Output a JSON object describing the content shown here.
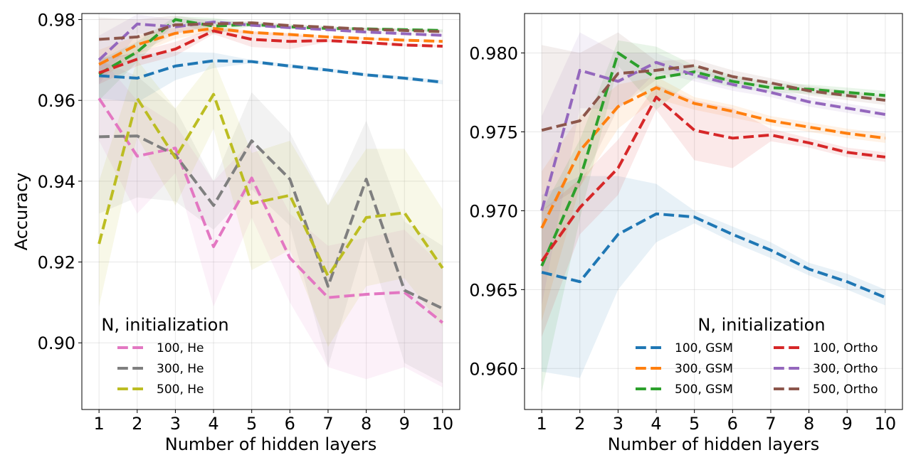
{
  "chart_data": [
    {
      "type": "line",
      "title": "",
      "xlabel": "Number of hidden layers",
      "ylabel": "Accuracy",
      "x": [
        1,
        2,
        3,
        4,
        5,
        6,
        7,
        8,
        9,
        10
      ],
      "xticks": [
        "1",
        "2",
        "3",
        "4",
        "5",
        "6",
        "7",
        "8",
        "9",
        "10"
      ],
      "xlim": [
        0.55,
        10.45
      ],
      "ylim": [
        0.8835,
        0.9815
      ],
      "yticks": [
        "0.90",
        "0.92",
        "0.94",
        "0.96",
        "0.98"
      ],
      "ytick_values": [
        0.9,
        0.92,
        0.94,
        0.96,
        0.98
      ],
      "grid": true,
      "legend": {
        "title": "N, initialization",
        "placement": "lower-left",
        "columns": 1,
        "entries": [
          "100, He",
          "300, He",
          "500, He"
        ]
      },
      "series": [
        {
          "name": "100, GSM",
          "color": "#1f77b4",
          "in_legend": false,
          "values": [
            0.9661,
            0.9655,
            0.9685,
            0.9698,
            0.9696,
            0.9685,
            0.9675,
            0.9663,
            0.9655,
            0.9645
          ],
          "upper": [
            0.9705,
            0.9715,
            0.972,
            0.9718,
            0.97,
            0.969,
            0.968,
            0.9667,
            0.966,
            0.965
          ],
          "lower": [
            0.9605,
            0.9595,
            0.965,
            0.968,
            0.9692,
            0.968,
            0.967,
            0.9659,
            0.965,
            0.964
          ]
        },
        {
          "name": "300, GSM",
          "color": "#ff7f0e",
          "in_legend": false,
          "values": [
            0.9689,
            0.9738,
            0.9766,
            0.9778,
            0.9768,
            0.9763,
            0.9757,
            0.9753,
            0.9749,
            0.9746
          ],
          "upper": [
            0.9725,
            0.976,
            0.978,
            0.9785,
            0.9772,
            0.9767,
            0.976,
            0.9756,
            0.9752,
            0.9749
          ],
          "lower": [
            0.965,
            0.9715,
            0.9752,
            0.9771,
            0.9764,
            0.9759,
            0.9754,
            0.975,
            0.9746,
            0.9743
          ]
        },
        {
          "name": "500, GSM",
          "color": "#2ca02c",
          "in_legend": false,
          "values": [
            0.9665,
            0.972,
            0.98,
            0.9784,
            0.9788,
            0.9782,
            0.9778,
            0.9777,
            0.9775,
            0.9773
          ],
          "upper": [
            0.97,
            0.9745,
            0.9808,
            0.9804,
            0.9792,
            0.9786,
            0.9781,
            0.978,
            0.9778,
            0.9776
          ],
          "lower": [
            0.96,
            0.9695,
            0.9792,
            0.9764,
            0.9784,
            0.9778,
            0.9775,
            0.9774,
            0.9772,
            0.977
          ]
        },
        {
          "name": "100, Ortho",
          "color": "#d62728",
          "in_legend": false,
          "values": [
            0.9668,
            0.9702,
            0.9727,
            0.9772,
            0.9751,
            0.9746,
            0.9748,
            0.9743,
            0.9737,
            0.9734
          ],
          "upper": [
            0.97,
            0.972,
            0.9745,
            0.978,
            0.977,
            0.9765,
            0.9752,
            0.9746,
            0.974,
            0.9737
          ],
          "lower": [
            0.964,
            0.9685,
            0.971,
            0.9764,
            0.9732,
            0.9727,
            0.9744,
            0.974,
            0.9734,
            0.9731
          ]
        },
        {
          "name": "300, Ortho",
          "color": "#9467bd",
          "in_legend": false,
          "values": [
            0.97,
            0.9789,
            0.9782,
            0.9794,
            0.9786,
            0.978,
            0.9775,
            0.9769,
            0.9765,
            0.9761
          ],
          "upper": [
            0.976,
            0.9813,
            0.98,
            0.98,
            0.979,
            0.9784,
            0.9778,
            0.9772,
            0.9768,
            0.9764
          ],
          "lower": [
            0.964,
            0.9765,
            0.9764,
            0.9788,
            0.9782,
            0.9776,
            0.9772,
            0.9766,
            0.9762,
            0.9758
          ]
        },
        {
          "name": "500, Ortho",
          "color": "#8c564b",
          "in_legend": false,
          "values": [
            0.9751,
            0.9757,
            0.9787,
            0.9789,
            0.9792,
            0.9785,
            0.9781,
            0.9776,
            0.9773,
            0.977
          ],
          "upper": [
            0.9805,
            0.98,
            0.981,
            0.9795,
            0.9796,
            0.9789,
            0.9784,
            0.9779,
            0.9776,
            0.9773
          ],
          "lower": [
            0.97,
            0.9715,
            0.9765,
            0.9783,
            0.9788,
            0.9781,
            0.9778,
            0.9773,
            0.977,
            0.9767
          ]
        },
        {
          "name": "100, He",
          "color": "#e377c2",
          "in_legend": true,
          "values": [
            0.9605,
            0.9462,
            0.9482,
            0.9238,
            0.9408,
            0.921,
            0.9112,
            0.912,
            0.9125,
            0.905
          ],
          "upper": [
            0.971,
            0.96,
            0.954,
            0.94,
            0.95,
            0.932,
            0.924,
            0.926,
            0.928,
            0.919
          ],
          "lower": [
            0.95,
            0.932,
            0.942,
            0.909,
            0.931,
            0.91,
            0.894,
            0.891,
            0.894,
            0.889
          ]
        },
        {
          "name": "300, He",
          "color": "#7f7f7f",
          "in_legend": true,
          "values": [
            0.951,
            0.9512,
            0.9465,
            0.934,
            0.95,
            0.9405,
            0.914,
            0.9405,
            0.913,
            0.9085
          ],
          "upper": [
            0.97,
            0.966,
            0.958,
            0.94,
            0.962,
            0.952,
            0.934,
            0.955,
            0.93,
            0.924
          ],
          "lower": [
            0.932,
            0.936,
            0.935,
            0.928,
            0.938,
            0.929,
            0.894,
            0.926,
            0.895,
            0.89
          ]
        },
        {
          "name": "500, He",
          "color": "#bcbd22",
          "in_legend": true,
          "values": [
            0.9245,
            0.9605,
            0.9458,
            0.9615,
            0.9345,
            0.9365,
            0.9165,
            0.931,
            0.9322,
            0.9185
          ],
          "upper": [
            0.94,
            0.97,
            0.958,
            0.97,
            0.947,
            0.95,
            0.934,
            0.948,
            0.948,
            0.933
          ],
          "lower": [
            0.909,
            0.951,
            0.934,
            0.953,
            0.918,
            0.923,
            0.899,
            0.914,
            0.916,
            0.904
          ]
        }
      ]
    },
    {
      "type": "line",
      "title": "",
      "xlabel": "Number of hidden layers",
      "ylabel": "",
      "x": [
        1,
        2,
        3,
        4,
        5,
        6,
        7,
        8,
        9,
        10
      ],
      "xticks": [
        "1",
        "2",
        "3",
        "4",
        "5",
        "6",
        "7",
        "8",
        "9",
        "10"
      ],
      "xlim": [
        0.55,
        10.45
      ],
      "ylim": [
        0.9574,
        0.9825
      ],
      "yticks": [
        "0.960",
        "0.965",
        "0.970",
        "0.975",
        "0.980"
      ],
      "ytick_values": [
        0.96,
        0.965,
        0.97,
        0.975,
        0.98
      ],
      "grid": true,
      "legend": {
        "title": "N, initialization",
        "placement": "lower-right",
        "columns": 2,
        "entries": [
          "100, GSM",
          "300, GSM",
          "500, GSM",
          "100, Ortho",
          "300, Ortho",
          "500, Ortho"
        ]
      },
      "series": [
        {
          "name": "100, GSM",
          "color": "#1f77b4",
          "in_legend": true,
          "values": [
            0.9661,
            0.9655,
            0.9685,
            0.9698,
            0.9696,
            0.9685,
            0.9675,
            0.9663,
            0.9655,
            0.9645
          ],
          "upper": [
            0.971,
            0.9722,
            0.9722,
            0.9717,
            0.97,
            0.969,
            0.968,
            0.9667,
            0.966,
            0.965
          ],
          "lower": [
            0.9598,
            0.9594,
            0.965,
            0.968,
            0.9692,
            0.968,
            0.967,
            0.9659,
            0.965,
            0.964
          ]
        },
        {
          "name": "300, GSM",
          "color": "#ff7f0e",
          "in_legend": true,
          "values": [
            0.9689,
            0.9738,
            0.9766,
            0.9778,
            0.9768,
            0.9763,
            0.9757,
            0.9753,
            0.9749,
            0.9746
          ],
          "upper": [
            0.9725,
            0.976,
            0.978,
            0.9785,
            0.9772,
            0.9767,
            0.976,
            0.9756,
            0.9752,
            0.9749
          ],
          "lower": [
            0.963,
            0.9715,
            0.9752,
            0.9771,
            0.9764,
            0.9759,
            0.9754,
            0.975,
            0.9746,
            0.9743
          ]
        },
        {
          "name": "500, GSM",
          "color": "#2ca02c",
          "in_legend": true,
          "values": [
            0.9665,
            0.972,
            0.98,
            0.9784,
            0.9788,
            0.9782,
            0.9778,
            0.9777,
            0.9775,
            0.9773
          ],
          "upper": [
            0.97,
            0.9745,
            0.9808,
            0.9804,
            0.9792,
            0.9786,
            0.9781,
            0.978,
            0.9778,
            0.9776
          ],
          "lower": [
            0.9585,
            0.9695,
            0.9792,
            0.9764,
            0.9784,
            0.9778,
            0.9775,
            0.9774,
            0.9772,
            0.977
          ]
        },
        {
          "name": "100, Ortho",
          "color": "#d62728",
          "in_legend": true,
          "values": [
            0.9668,
            0.9702,
            0.9727,
            0.9772,
            0.9751,
            0.9746,
            0.9748,
            0.9743,
            0.9737,
            0.9734
          ],
          "upper": [
            0.97,
            0.972,
            0.9745,
            0.978,
            0.977,
            0.9765,
            0.9752,
            0.9746,
            0.974,
            0.9737
          ],
          "lower": [
            0.962,
            0.9685,
            0.971,
            0.9764,
            0.9732,
            0.9727,
            0.9744,
            0.974,
            0.9734,
            0.9731
          ]
        },
        {
          "name": "300, Ortho",
          "color": "#9467bd",
          "in_legend": true,
          "values": [
            0.97,
            0.9789,
            0.9782,
            0.9794,
            0.9786,
            0.978,
            0.9775,
            0.9769,
            0.9765,
            0.9761
          ],
          "upper": [
            0.976,
            0.9813,
            0.98,
            0.98,
            0.979,
            0.9784,
            0.9778,
            0.9772,
            0.9768,
            0.9764
          ],
          "lower": [
            0.964,
            0.9765,
            0.9764,
            0.9788,
            0.9782,
            0.9776,
            0.9772,
            0.9766,
            0.9762,
            0.9758
          ]
        },
        {
          "name": "500, Ortho",
          "color": "#8c564b",
          "in_legend": true,
          "values": [
            0.9751,
            0.9757,
            0.9787,
            0.9789,
            0.9792,
            0.9785,
            0.9781,
            0.9776,
            0.9773,
            0.977
          ],
          "upper": [
            0.9805,
            0.98,
            0.9813,
            0.9795,
            0.9796,
            0.9789,
            0.9784,
            0.9779,
            0.9776,
            0.9773
          ],
          "lower": [
            0.97,
            0.9715,
            0.9765,
            0.9783,
            0.9788,
            0.9781,
            0.9778,
            0.9773,
            0.977,
            0.9767
          ]
        }
      ]
    }
  ]
}
